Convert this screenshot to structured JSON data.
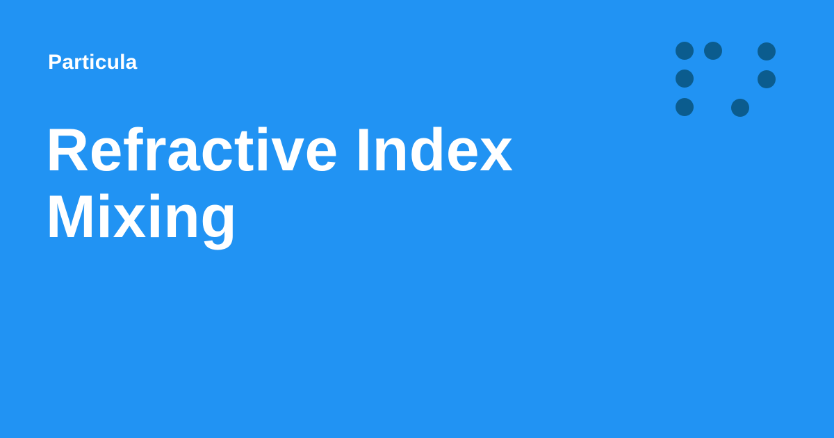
{
  "brand": {
    "name": "Particula"
  },
  "heading": {
    "line1": "Refractive Index",
    "line2": "Mixing"
  },
  "colors": {
    "background": "#2193f3",
    "text": "#ffffff",
    "logo_dots": "#0b5c8e"
  },
  "logo": {
    "icon": "dot-grid-logo-icon"
  }
}
